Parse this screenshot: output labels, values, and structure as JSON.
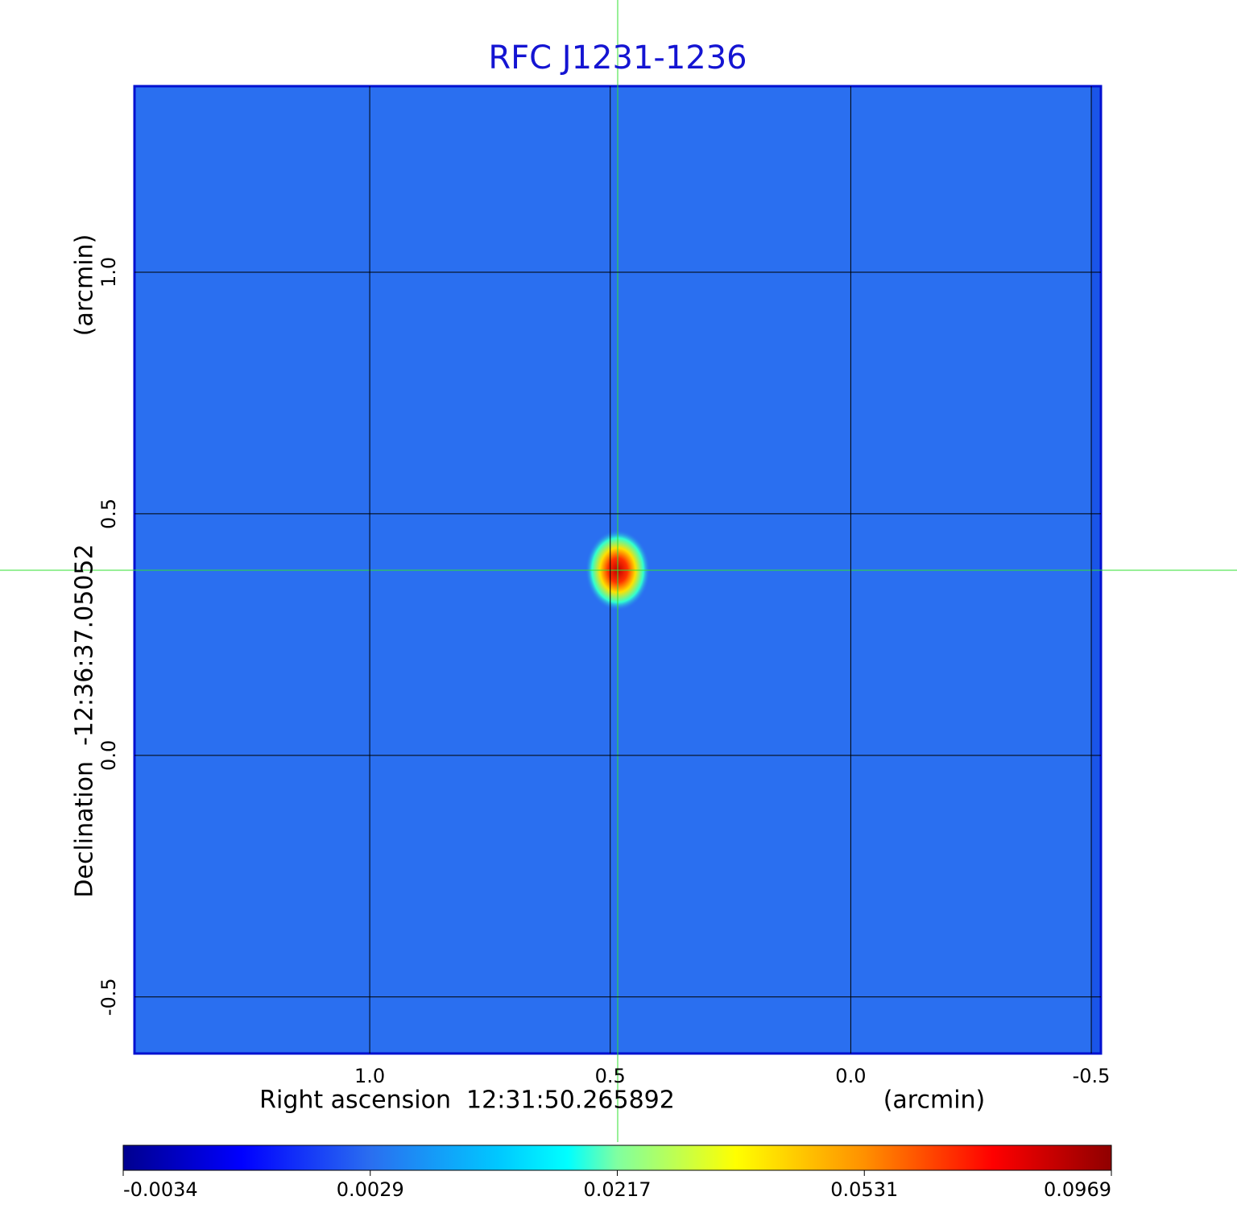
{
  "chart_data": {
    "type": "image",
    "title": "RFC J1231-1236",
    "title_color": "#1414d2",
    "xlabel": "Right ascension  12:31:50.265892",
    "xunit": "(arcmin)",
    "ylabel": "Declination  -12:36:37.05052",
    "yunit": "(arcmin)",
    "xlim": [
      1.489,
      -0.52
    ],
    "ylim": [
      -0.617,
      1.385
    ],
    "xticks": [
      {
        "value": 1,
        "label": "1.0"
      },
      0.5,
      {
        "value": 0,
        "label": "0.0"
      },
      -0.5
    ],
    "yticks": [
      -0.5,
      {
        "value": 0,
        "label": "0.0"
      },
      0.5,
      {
        "value": 1,
        "label": "1.0"
      }
    ],
    "grid": true,
    "colormap": "jet",
    "colorbar_ticks": [
      -0.0034,
      0.0029,
      0.0217,
      0.0531,
      0.0969
    ]
  }
}
